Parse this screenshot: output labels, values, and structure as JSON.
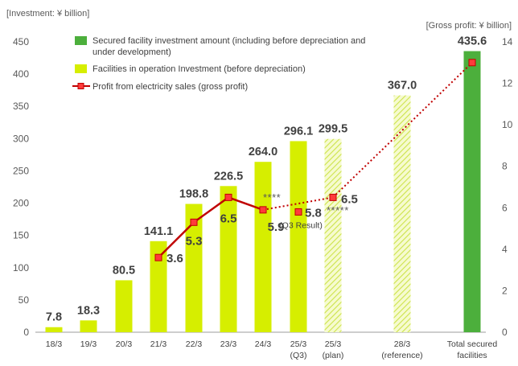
{
  "chart_data": {
    "type": "bar+line",
    "title": "",
    "left_axis": {
      "label": "[Investment: ¥ billion]",
      "ylim": [
        0,
        450
      ],
      "ticks": [
        0,
        50,
        100,
        150,
        200,
        250,
        300,
        350,
        400,
        450
      ]
    },
    "right_axis": {
      "label": "[Gross profit: ¥ billion]",
      "ylim": [
        0,
        14
      ],
      "ticks": [
        0,
        2,
        4,
        6,
        8,
        10,
        12,
        14
      ]
    },
    "categories": [
      {
        "line1": "18/3",
        "line2": ""
      },
      {
        "line1": "19/3",
        "line2": ""
      },
      {
        "line1": "20/3",
        "line2": ""
      },
      {
        "line1": "21/3",
        "line2": ""
      },
      {
        "line1": "22/3",
        "line2": ""
      },
      {
        "line1": "23/3",
        "line2": ""
      },
      {
        "line1": "24/3",
        "line2": ""
      },
      {
        "line1": "25/3",
        "line2": "(Q3)"
      },
      {
        "line1": "25/3",
        "line2": "(plan)"
      },
      {
        "line1": "28/3",
        "line2": "(reference)"
      },
      {
        "line1": "Total secured",
        "line2": "facilities"
      }
    ],
    "bars": [
      {
        "category_index": 0,
        "value": 7.8,
        "label": "7.8",
        "style": "solid-lime"
      },
      {
        "category_index": 1,
        "value": 18.3,
        "label": "18.3",
        "style": "solid-lime"
      },
      {
        "category_index": 2,
        "value": 80.5,
        "label": "80.5",
        "style": "solid-lime"
      },
      {
        "category_index": 3,
        "value": 141.1,
        "label": "141.1",
        "style": "solid-lime"
      },
      {
        "category_index": 4,
        "value": 198.8,
        "label": "198.8",
        "style": "solid-lime"
      },
      {
        "category_index": 5,
        "value": 226.5,
        "label": "226.5",
        "style": "solid-lime"
      },
      {
        "category_index": 6,
        "value": 264.0,
        "label": "264.0",
        "style": "solid-lime"
      },
      {
        "category_index": 7,
        "value": 296.1,
        "label": "296.1",
        "style": "solid-lime"
      },
      {
        "category_index": 8,
        "value": 299.5,
        "label": "299.5",
        "style": "hatched-lime"
      },
      {
        "category_index": 9,
        "value": 367.0,
        "label": "367.0",
        "style": "hatched-lime"
      },
      {
        "category_index": 10,
        "value": 435.6,
        "label": "435.6",
        "style": "solid-green"
      }
    ],
    "profit_line": {
      "name": "Profit from electricity sales (gross profit)",
      "points": [
        {
          "category_index": 3,
          "value": 3.6,
          "label": "3.6",
          "segment_in": ""
        },
        {
          "category_index": 4,
          "value": 5.3,
          "label": "5.3",
          "segment_in": "solid"
        },
        {
          "category_index": 5,
          "value": 6.5,
          "label": "6.5",
          "segment_in": "solid"
        },
        {
          "category_index": 6,
          "value": 5.9,
          "label": "5.9",
          "segment_in": "solid"
        },
        {
          "category_index": 8,
          "value": 6.5,
          "label": "6.5",
          "segment_in": "dotted"
        },
        {
          "category_index": 10,
          "value": 13.0,
          "label": "",
          "segment_in": "dotted"
        }
      ],
      "extra_point": {
        "category_index": 7,
        "value": 5.8,
        "label": "5.8",
        "note": "(Q3 Result)"
      },
      "stars_1": "****",
      "stars_2": "*****"
    },
    "legend": [
      {
        "key": "green",
        "text": [
          "Secured facility investment amount (including before depreciation and",
          "under development)"
        ]
      },
      {
        "key": "lime",
        "text": [
          "Facilities in operation Investment (before depreciation)"
        ]
      },
      {
        "key": "line",
        "text": [
          "Profit from electricity sales (gross profit)"
        ]
      }
    ],
    "colors": {
      "lime": "#d6ee00",
      "hatch": "#e8f59a",
      "green": "#4caf3c",
      "line": "#c00000",
      "marker": "#ff3b3b",
      "axis": "#9e9e9e"
    }
  }
}
